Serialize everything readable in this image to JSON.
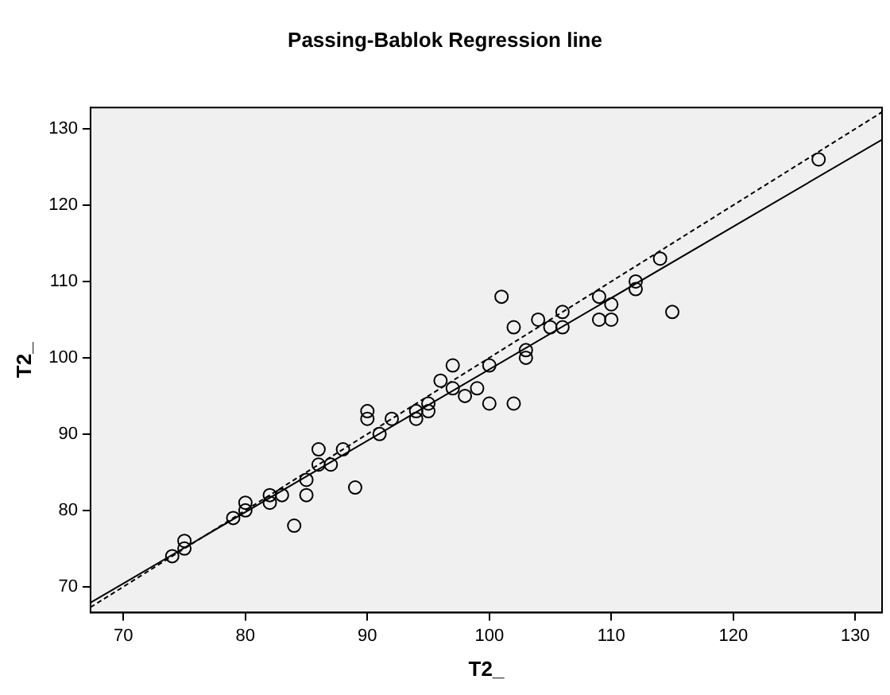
{
  "chart_data": {
    "type": "scatter",
    "title": "Passing-Bablok Regression line",
    "xlabel": "T2_",
    "ylabel": "T2_",
    "xlim": [
      67.3,
      132.2
    ],
    "ylim": [
      66.6,
      132.8
    ],
    "xticks": [
      70,
      80,
      90,
      100,
      110,
      120,
      130
    ],
    "yticks": [
      70,
      80,
      90,
      100,
      110,
      120,
      130
    ],
    "grid": false,
    "legend": false,
    "series": [
      {
        "type": "scatter",
        "marker": "circle",
        "color": "#000000",
        "x": [
          74,
          75,
          75,
          79,
          80,
          80,
          82,
          82,
          83,
          84,
          85,
          85,
          86,
          86,
          87,
          88,
          89,
          90,
          90,
          91,
          92,
          94,
          94,
          95,
          95,
          96,
          97,
          97,
          98,
          99,
          100,
          100,
          101,
          102,
          102,
          103,
          103,
          104,
          105,
          106,
          106,
          109,
          109,
          110,
          110,
          112,
          112,
          114,
          115,
          127
        ],
        "values": [
          74,
          76,
          75,
          79,
          81,
          80,
          82,
          81,
          82,
          78,
          84,
          82,
          88,
          86,
          86,
          88,
          83,
          93,
          92,
          90,
          92,
          93,
          92,
          94,
          93,
          97,
          99,
          96,
          95,
          96,
          99,
          94,
          108,
          104,
          94,
          101,
          100,
          105,
          104,
          106,
          104,
          108,
          105,
          107,
          105,
          110,
          109,
          113,
          106,
          126
        ]
      },
      {
        "type": "line",
        "marker": "none",
        "line_style": "solid",
        "color": "#000000",
        "x": [
          67.3,
          132.2
        ],
        "values": [
          67.9,
          128.6
        ]
      },
      {
        "type": "line",
        "marker": "none",
        "line_style": "dashed",
        "color": "#000000",
        "x": [
          67.3,
          132.2
        ],
        "values": [
          67.3,
          132.2
        ]
      }
    ]
  }
}
